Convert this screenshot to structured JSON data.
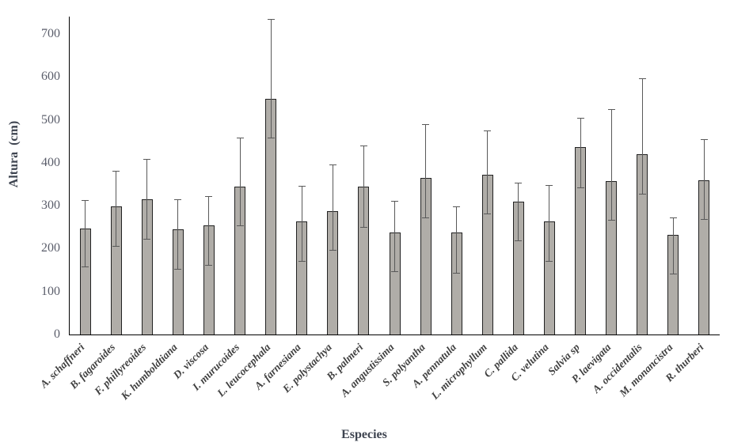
{
  "chart_data": {
    "type": "bar",
    "title": "",
    "xlabel": "Especies",
    "ylabel": "Altura  (cm)",
    "ylim": [
      0,
      740
    ],
    "yticks": [
      0,
      100,
      200,
      300,
      400,
      500,
      600,
      700
    ],
    "grid": false,
    "legend": "none",
    "bar_fill_color": "#b0ada8",
    "bar_border_color": "#222222",
    "error_bar_color": "#595959",
    "axis_color": "#000000",
    "categories": [
      "A. schaffneri",
      "B. fagaroides",
      "F. phillyreoides",
      "K. humboldtiana",
      "D. viscosa",
      "I. murucoides",
      "L. leucocephala",
      "A. farnesiana",
      "E. polystachya",
      "B. palmeri",
      "A. angustissima",
      "S. polyantha",
      "A. pennatula",
      "L. microphyllum",
      "C. pallida",
      "C. velutina",
      "Salvia sp",
      "P. laevigata",
      "A. occidentalis",
      "M. monancistra",
      "R. thurberi"
    ],
    "series": [
      {
        "name": "Altura (cm)",
        "values": [
          247,
          299,
          315,
          245,
          254,
          345,
          549,
          263,
          288,
          344,
          237,
          365,
          237,
          372,
          309,
          263,
          436,
          357,
          420,
          232,
          359
        ],
        "error_upper": [
          312,
          379,
          408,
          313,
          320,
          457,
          733,
          344,
          395,
          438,
          309,
          488,
          296,
          474,
          352,
          346,
          503,
          523,
          595,
          271,
          453
        ],
        "error_lower": [
          156,
          204,
          221,
          151,
          160,
          252,
          456,
          169,
          195,
          249,
          145,
          271,
          142,
          280,
          217,
          169,
          341,
          265,
          326,
          140,
          267
        ]
      }
    ]
  }
}
